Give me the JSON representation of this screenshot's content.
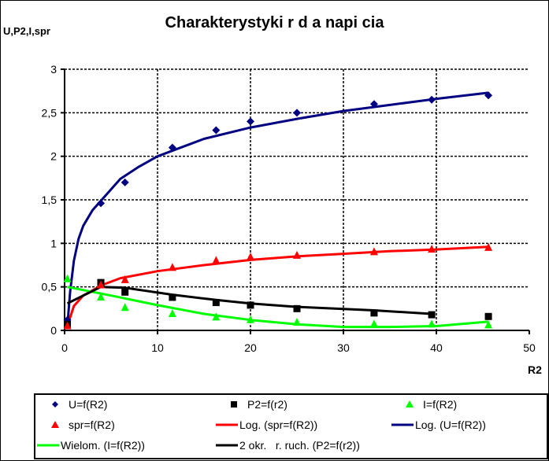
{
  "header": {
    "title": "Charakterystyki   r  d a napi  cia",
    "y_axis_label": "U,P2,I,spr",
    "x_axis_label": "R2"
  },
  "axes": {
    "x_ticks": [
      "0",
      "10",
      "20",
      "30",
      "40",
      "50"
    ],
    "y_ticks": [
      "0",
      "0,5",
      "1",
      "1,5",
      "2",
      "2,5",
      "3"
    ]
  },
  "legend": {
    "items": [
      {
        "label": "U=f(R2)",
        "symbol": "diamond",
        "color": "#000080"
      },
      {
        "label": "P2=f(r2)",
        "symbol": "square",
        "color": "#000000"
      },
      {
        "label": "I=f(R2)",
        "symbol": "triangle",
        "color": "#00FF00"
      },
      {
        "label": "spr=f(R2)",
        "symbol": "triangle",
        "color": "#FF0000"
      },
      {
        "label": "Log. (spr=f(R2))",
        "symbol": "line",
        "color": "#FF0000"
      },
      {
        "label": "Log. (U=f(R2))",
        "symbol": "line",
        "color": "#000080"
      },
      {
        "label": "Wielom. (I=f(R2))",
        "symbol": "line",
        "color": "#00FF00"
      },
      {
        "label": "2 okr.   r. ruch. (P2=f(r2))",
        "symbol": "line",
        "color": "#000000"
      }
    ]
  },
  "chart_data": {
    "type": "scatter",
    "title": "Charakterystyki   r  d a napi  cia",
    "xlabel": "R2",
    "ylabel": "U,P2,I,spr",
    "xlim": [
      0,
      50
    ],
    "ylim": [
      0,
      3
    ],
    "x_ticks": [
      0,
      10,
      20,
      30,
      40,
      50
    ],
    "y_ticks": [
      0,
      0.5,
      1,
      1.5,
      2,
      2.5,
      3
    ],
    "grid": "dashed major gridlines on both axes",
    "legend_position": "bottom",
    "x": [
      0.3,
      3.9,
      6.5,
      11.6,
      16.3,
      20,
      25,
      33.3,
      39.5,
      45.6
    ],
    "series": [
      {
        "name": "U=f(R2)",
        "marker": "diamond",
        "color": "#000080",
        "values": [
          0.12,
          1.46,
          1.7,
          2.1,
          2.3,
          2.4,
          2.5,
          2.6,
          2.65,
          2.7
        ]
      },
      {
        "name": "P2=f(r2)",
        "marker": "square",
        "color": "#000000",
        "values": [
          0.07,
          0.55,
          0.44,
          0.38,
          0.32,
          0.29,
          0.25,
          0.2,
          0.18,
          0.16
        ]
      },
      {
        "name": "I=f(R2)",
        "marker": "triangle",
        "color": "#00FF00",
        "values": [
          0.59,
          0.38,
          0.26,
          0.19,
          0.15,
          0.12,
          0.09,
          0.07,
          0.07,
          0.06
        ]
      },
      {
        "name": "spr=f(R2)",
        "marker": "triangle",
        "color": "#FF0000",
        "values": [
          0.05,
          0.52,
          0.58,
          0.72,
          0.8,
          0.84,
          0.86,
          0.9,
          0.93,
          0.95
        ]
      }
    ],
    "trendlines": [
      {
        "name": "Log. (spr=f(R2))",
        "type": "logarithmic",
        "color": "#FF0000",
        "points": [
          [
            0.3,
            0.05
          ],
          [
            1,
            0.28
          ],
          [
            2,
            0.4
          ],
          [
            4,
            0.52
          ],
          [
            6,
            0.6
          ],
          [
            10,
            0.68
          ],
          [
            15,
            0.75
          ],
          [
            20,
            0.81
          ],
          [
            25,
            0.85
          ],
          [
            30,
            0.88
          ],
          [
            35,
            0.91
          ],
          [
            40,
            0.93
          ],
          [
            45.6,
            0.96
          ]
        ]
      },
      {
        "name": "Log. (U=f(R2))",
        "type": "logarithmic",
        "color": "#000080",
        "points": [
          [
            0.3,
            0.05
          ],
          [
            0.6,
            0.45
          ],
          [
            1,
            0.8
          ],
          [
            1.5,
            1.05
          ],
          [
            2,
            1.2
          ],
          [
            3,
            1.38
          ],
          [
            4,
            1.5
          ],
          [
            6,
            1.74
          ],
          [
            8,
            1.88
          ],
          [
            10,
            2.0
          ],
          [
            15,
            2.2
          ],
          [
            20,
            2.33
          ],
          [
            25,
            2.43
          ],
          [
            30,
            2.52
          ],
          [
            35,
            2.59
          ],
          [
            40,
            2.66
          ],
          [
            45.6,
            2.73
          ]
        ]
      },
      {
        "name": "Wielom. (I=f(R2))",
        "type": "polynomial",
        "color": "#00FF00",
        "points": [
          [
            0.3,
            0.5
          ],
          [
            5,
            0.4
          ],
          [
            10,
            0.29
          ],
          [
            15,
            0.19
          ],
          [
            20,
            0.12
          ],
          [
            25,
            0.07
          ],
          [
            30,
            0.04
          ],
          [
            35,
            0.04
          ],
          [
            40,
            0.05
          ],
          [
            45.6,
            0.1
          ]
        ]
      },
      {
        "name": "2 okr.   r. ruch. (P2=f(r2))",
        "type": "moving_average",
        "color": "#000000",
        "points": [
          [
            0.3,
            0.31
          ],
          [
            3.9,
            0.5
          ],
          [
            6.5,
            0.49
          ],
          [
            11.6,
            0.41
          ],
          [
            16.3,
            0.35
          ],
          [
            20,
            0.31
          ],
          [
            25,
            0.27
          ],
          [
            33.3,
            0.23
          ],
          [
            39.5,
            0.19
          ]
        ]
      }
    ]
  }
}
